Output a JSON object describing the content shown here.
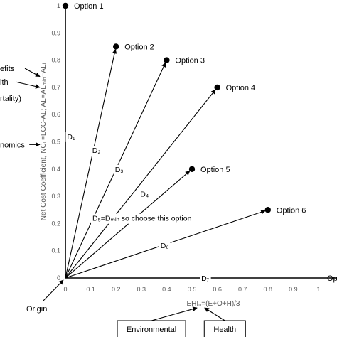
{
  "chart_data": {
    "type": "scatter",
    "xlabel": "EHI₀=(E+O+H)/3",
    "ylabel": "Net Cost Coefficient, NCⱼ =LCC-AL; AL=ALₘᵢₙ+ALᵢ",
    "xlim": [
      0,
      1
    ],
    "ylim": [
      0,
      1
    ],
    "x_ticks": [
      "0",
      "0.1",
      "0.2",
      "0.3",
      "0.4",
      "0.5",
      "0.6",
      "0.7",
      "0.8",
      "0.9",
      "1"
    ],
    "y_ticks": [
      "0",
      "0.1",
      "0.2",
      "0.3",
      "0.4",
      "0.5",
      "0.6",
      "0.7",
      "0.8",
      "0.9",
      "1"
    ],
    "grid": false,
    "points": [
      {
        "label": "Option 1",
        "x": 0.0,
        "y": 1.0
      },
      {
        "label": "Option 2",
        "x": 0.2,
        "y": 0.85
      },
      {
        "label": "Option 3",
        "x": 0.4,
        "y": 0.8
      },
      {
        "label": "Option 4",
        "x": 0.6,
        "y": 0.7
      },
      {
        "label": "Option 5",
        "x": 0.5,
        "y": 0.4
      },
      {
        "label": "Option 6",
        "x": 0.8,
        "y": 0.25
      },
      {
        "label": "Option",
        "x": 1.0,
        "y": 0.0
      }
    ],
    "distance_labels": [
      {
        "text": "D₁",
        "x": 0.0,
        "y": 0.52
      },
      {
        "text": "D₂",
        "x": 0.1,
        "y": 0.47
      },
      {
        "text": "D₃",
        "x": 0.19,
        "y": 0.4
      },
      {
        "text": "D₄",
        "x": 0.29,
        "y": 0.31
      },
      {
        "text": "D₅=Dₘᵢₙ so choose this option",
        "x": 0.28,
        "y": 0.22
      },
      {
        "text": "D₆",
        "x": 0.37,
        "y": 0.12
      },
      {
        "text": "D₇",
        "x": 0.53,
        "y": 0.0
      }
    ],
    "left_annotations": [
      {
        "text": "efits",
        "y": 0.77,
        "target_y": 0.74
      },
      {
        "text": "lth",
        "y": 0.72,
        "target_y": 0.7
      },
      {
        "text": "rtality)",
        "y": 0.66,
        "target_y": null
      },
      {
        "text": "nomics",
        "y": 0.49,
        "target_y": 0.49
      }
    ],
    "origin_label": "Origin",
    "bottom_boxes": [
      "Environmental",
      "Health"
    ]
  }
}
